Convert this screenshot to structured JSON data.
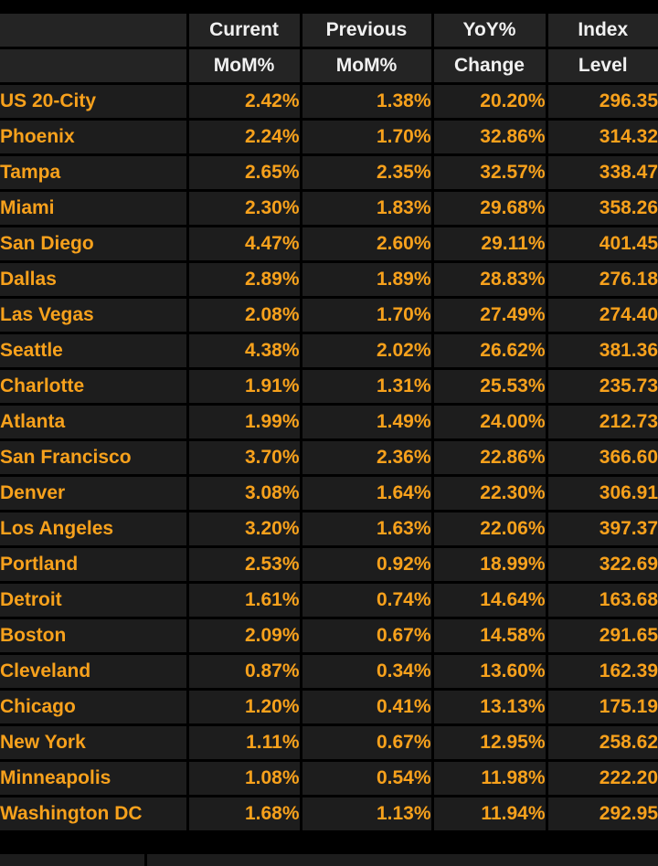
{
  "table": {
    "columns": [
      {
        "line1": "",
        "line2": ""
      },
      {
        "line1": "Current",
        "line2": "MoM%"
      },
      {
        "line1": "Previous",
        "line2": "MoM%"
      },
      {
        "line1": "YoY%",
        "line2": "Change"
      },
      {
        "line1": "Index",
        "line2": "Level"
      }
    ],
    "rows": [
      {
        "city": "US 20-City",
        "current_mom": "2.42%",
        "previous_mom": "1.38%",
        "yoy_change": "20.20%",
        "index_level": "296.35"
      },
      {
        "city": "Phoenix",
        "current_mom": "2.24%",
        "previous_mom": "1.70%",
        "yoy_change": "32.86%",
        "index_level": "314.32"
      },
      {
        "city": "Tampa",
        "current_mom": "2.65%",
        "previous_mom": "2.35%",
        "yoy_change": "32.57%",
        "index_level": "338.47"
      },
      {
        "city": "Miami",
        "current_mom": "2.30%",
        "previous_mom": "1.83%",
        "yoy_change": "29.68%",
        "index_level": "358.26"
      },
      {
        "city": "San Diego",
        "current_mom": "4.47%",
        "previous_mom": "2.60%",
        "yoy_change": "29.11%",
        "index_level": "401.45"
      },
      {
        "city": "Dallas",
        "current_mom": "2.89%",
        "previous_mom": "1.89%",
        "yoy_change": "28.83%",
        "index_level": "276.18"
      },
      {
        "city": "Las Vegas",
        "current_mom": "2.08%",
        "previous_mom": "1.70%",
        "yoy_change": "27.49%",
        "index_level": "274.40"
      },
      {
        "city": "Seattle",
        "current_mom": "4.38%",
        "previous_mom": "2.02%",
        "yoy_change": "26.62%",
        "index_level": "381.36"
      },
      {
        "city": "Charlotte",
        "current_mom": "1.91%",
        "previous_mom": "1.31%",
        "yoy_change": "25.53%",
        "index_level": "235.73"
      },
      {
        "city": "Atlanta",
        "current_mom": "1.99%",
        "previous_mom": "1.49%",
        "yoy_change": "24.00%",
        "index_level": "212.73"
      },
      {
        "city": "San Francisco",
        "current_mom": "3.70%",
        "previous_mom": "2.36%",
        "yoy_change": "22.86%",
        "index_level": "366.60"
      },
      {
        "city": "Denver",
        "current_mom": "3.08%",
        "previous_mom": "1.64%",
        "yoy_change": "22.30%",
        "index_level": "306.91"
      },
      {
        "city": "Los Angeles",
        "current_mom": "3.20%",
        "previous_mom": "1.63%",
        "yoy_change": "22.06%",
        "index_level": "397.37"
      },
      {
        "city": "Portland",
        "current_mom": "2.53%",
        "previous_mom": "0.92%",
        "yoy_change": "18.99%",
        "index_level": "322.69"
      },
      {
        "city": "Detroit",
        "current_mom": "1.61%",
        "previous_mom": "0.74%",
        "yoy_change": "14.64%",
        "index_level": "163.68"
      },
      {
        "city": "Boston",
        "current_mom": "2.09%",
        "previous_mom": "0.67%",
        "yoy_change": "14.58%",
        "index_level": "291.65"
      },
      {
        "city": "Cleveland",
        "current_mom": "0.87%",
        "previous_mom": "0.34%",
        "yoy_change": "13.60%",
        "index_level": "162.39"
      },
      {
        "city": "Chicago",
        "current_mom": "1.20%",
        "previous_mom": "0.41%",
        "yoy_change": "13.13%",
        "index_level": "175.19"
      },
      {
        "city": "New York",
        "current_mom": "1.11%",
        "previous_mom": "0.67%",
        "yoy_change": "12.95%",
        "index_level": "258.62"
      },
      {
        "city": "Minneapolis",
        "current_mom": "1.08%",
        "previous_mom": "0.54%",
        "yoy_change": "11.98%",
        "index_level": "222.20"
      },
      {
        "city": "Washington DC",
        "current_mom": "1.68%",
        "previous_mom": "1.13%",
        "yoy_change": "11.94%",
        "index_level": "292.95"
      }
    ]
  },
  "colors": {
    "background": "#000000",
    "cell_background": "#1d1d1d",
    "header_background": "#242424",
    "grid_line": "#000000",
    "header_text": "#f1f1f1",
    "data_text_amber": "#f7a11c"
  }
}
